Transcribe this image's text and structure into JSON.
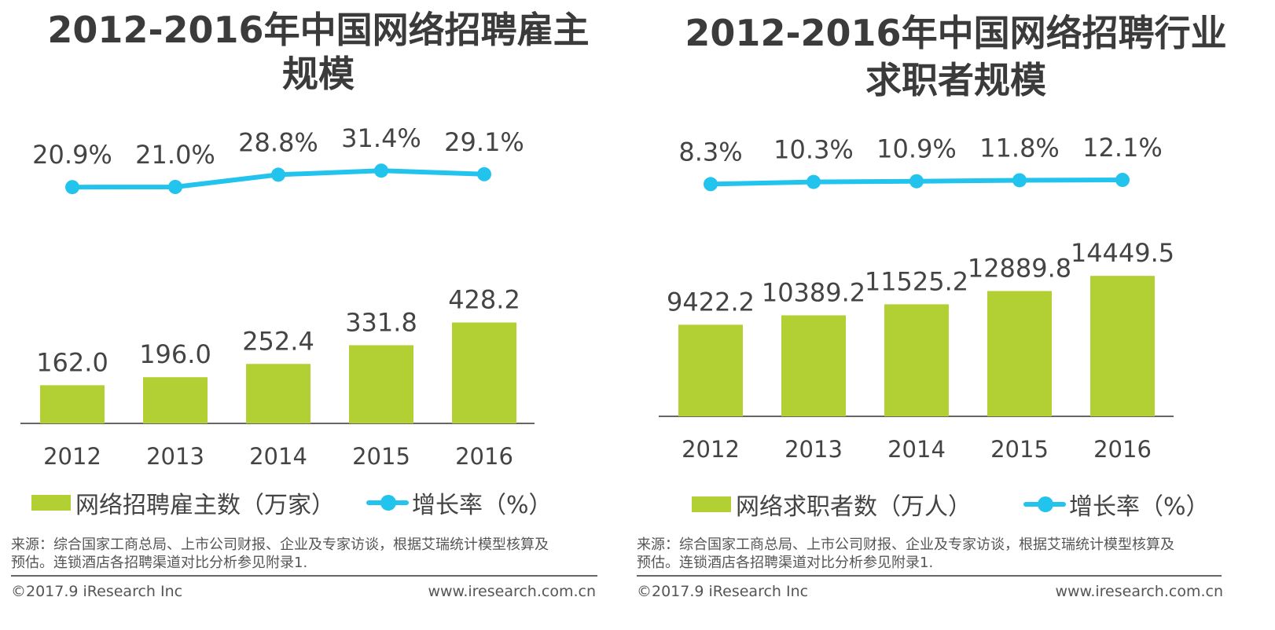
{
  "colors": {
    "bar": "#b2cf33",
    "line": "#22c3ec",
    "axis": "#666666",
    "text": "#444444"
  },
  "left": {
    "title_line1": "2012-2016年中国网络招聘雇主",
    "title_line2": "规模",
    "legend_bar": "网络招聘雇主数（万家）",
    "legend_line": "增长率（%）",
    "source_line1": "来源：综合国家工商总局、上市公司财报、企业及专家访谈，根据艾瑞统计模型核算及",
    "source_line2": "预估。连锁酒店各招聘渠道对比分析参见附录1.",
    "copyright": "©2017.9 iResearch Inc",
    "website": "www.iresearch.com.cn"
  },
  "right": {
    "title_line1": "2012-2016年中国网络招聘行业",
    "title_line2": "求职者规模",
    "legend_bar": "网络求职者数（万人）",
    "legend_line": "增长率（%）",
    "source_line1": "来源：综合国家工商总局、上市公司财报、企业及专家访谈，根据艾瑞统计模型核算及",
    "source_line2": "预估。连锁酒店各招聘渠道对比分析参见附录1.",
    "copyright": "©2017.9 iResearch Inc",
    "website": "www.iresearch.com.cn"
  },
  "chart_data": [
    {
      "type": "bar+line",
      "title": "2012-2016年中国网络招聘雇主规模",
      "categories": [
        "2012",
        "2013",
        "2014",
        "2015",
        "2016"
      ],
      "series": [
        {
          "name": "网络招聘雇主数（万家）",
          "type": "bar",
          "values": [
            162.0,
            196.0,
            252.4,
            331.8,
            428.2
          ],
          "labels": [
            "162.0",
            "196.0",
            "252.4",
            "331.8",
            "428.2"
          ]
        },
        {
          "name": "增长率（%）",
          "type": "line",
          "values": [
            20.9,
            21.0,
            28.8,
            31.4,
            29.1
          ],
          "labels": [
            "20.9%",
            "21.0%",
            "28.8%",
            "31.4%",
            "29.1%"
          ]
        }
      ],
      "bar_ylim": [
        0,
        480
      ],
      "line_ylim": [
        0,
        36
      ],
      "legend": "bottom"
    },
    {
      "type": "bar+line",
      "title": "2012-2016年中国网络招聘行业求职者规模",
      "categories": [
        "2012",
        "2013",
        "2014",
        "2015",
        "2016"
      ],
      "series": [
        {
          "name": "网络求职者数（万人）",
          "type": "bar",
          "values": [
            9422.2,
            10389.2,
            11525.2,
            12889.8,
            14449.5
          ],
          "labels": [
            "9422.2",
            "10389.2",
            "11525.2",
            "12889.8",
            "14449.5"
          ]
        },
        {
          "name": "增长率（%）",
          "type": "line",
          "values": [
            8.3,
            10.3,
            10.9,
            11.8,
            12.1
          ],
          "labels": [
            "8.3%",
            "10.3%",
            "10.9%",
            "11.8%",
            "12.1%"
          ]
        }
      ],
      "bar_ylim": [
        0,
        16000
      ],
      "line_ylim": [
        0,
        60
      ],
      "legend": "bottom"
    }
  ]
}
